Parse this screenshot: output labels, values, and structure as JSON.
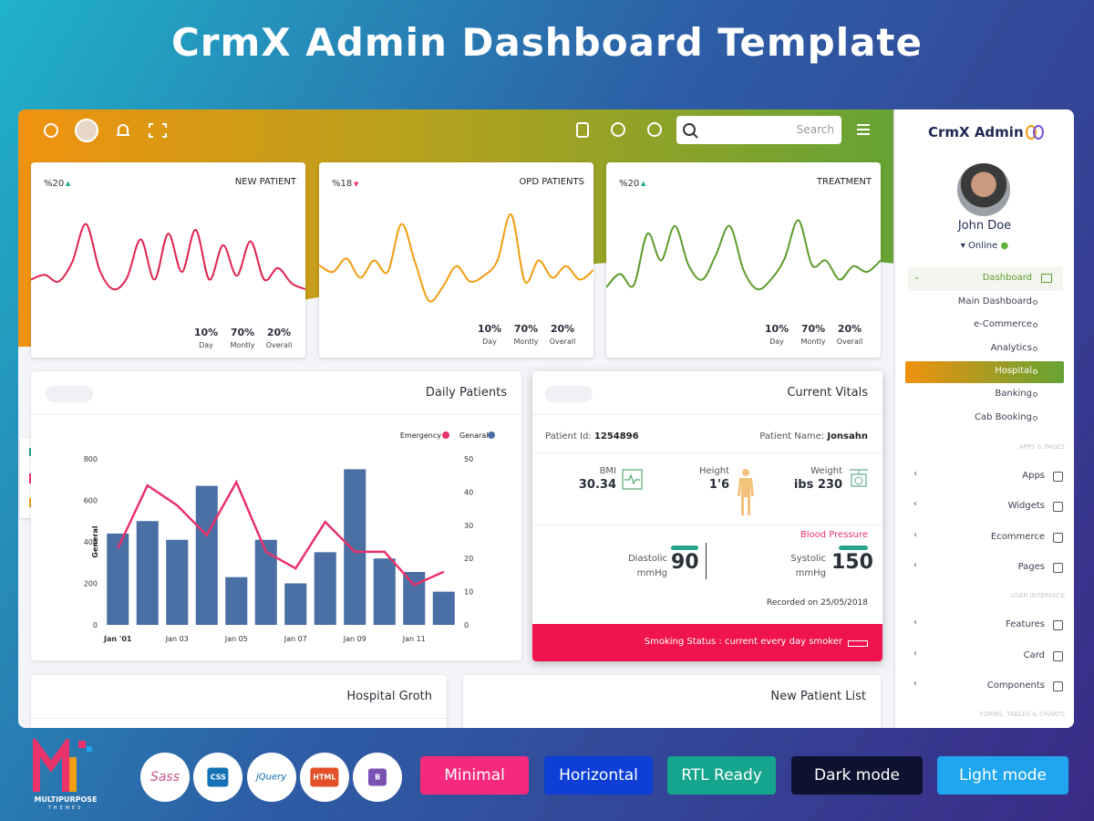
{
  "title": "CrmX Admin Dashboard Template",
  "header": {
    "search_placeholder": "Search"
  },
  "stat_cards": [
    {
      "change": "%20",
      "trend": "up",
      "title": "NEW PATIENT",
      "color": "#e0224e",
      "stats": [
        {
          "value": "10%",
          "label": "Day"
        },
        {
          "value": "70%",
          "label": "Montly"
        },
        {
          "value": "20%",
          "label": "Overall"
        }
      ],
      "values": [
        30,
        35,
        28,
        48,
        88,
        40,
        20,
        32,
        72,
        30,
        78,
        38,
        82,
        30,
        66,
        34,
        70,
        30,
        42,
        26,
        20
      ]
    },
    {
      "change": "%18",
      "trend": "down",
      "title": "OPD PATIENTS",
      "color": "#f29d13",
      "stats": [
        {
          "value": "10%",
          "label": "Day"
        },
        {
          "value": "70%",
          "label": "Montly"
        },
        {
          "value": "20%",
          "label": "Overall"
        }
      ],
      "values": [
        45,
        38,
        52,
        32,
        50,
        38,
        88,
        48,
        8,
        22,
        44,
        28,
        34,
        50,
        98,
        28,
        50,
        32,
        44,
        30,
        40
      ]
    },
    {
      "change": "%20",
      "trend": "up",
      "title": "TREATMENT",
      "color": "#5e9c2e",
      "stats": [
        {
          "value": "10%",
          "label": "Day"
        },
        {
          "value": "70%",
          "label": "Montly"
        },
        {
          "value": "20%",
          "label": "Overall"
        }
      ],
      "values": [
        22,
        36,
        24,
        78,
        50,
        86,
        45,
        30,
        56,
        86,
        40,
        20,
        30,
        52,
        92,
        45,
        50,
        30,
        44,
        38,
        50
      ]
    }
  ],
  "daily_patients": {
    "type": "bar",
    "title": "Daily Patients",
    "ylabel": "General",
    "categories": [
      "Jan '01",
      null,
      "Jan 03",
      null,
      "Jan 05",
      null,
      "Jan 07",
      null,
      "Jan 09",
      null,
      "Jan 11",
      null
    ],
    "series": [
      {
        "name": "Genaral",
        "color": "#4a6fa5",
        "values": [
          440,
          500,
          410,
          670,
          230,
          410,
          200,
          350,
          750,
          320,
          255,
          160
        ]
      },
      {
        "name": "Emergency",
        "color": "#e8336b",
        "type": "line",
        "axis": "y2",
        "values": [
          23,
          42,
          36,
          27,
          43,
          22,
          17,
          31,
          22,
          22,
          12,
          16
        ]
      }
    ],
    "ylim": [
      0,
      800
    ],
    "yticks": [
      0,
      200,
      400,
      600,
      800
    ],
    "y2lim": [
      0,
      50
    ],
    "y2ticks": [
      0,
      10,
      20,
      30,
      40,
      50
    ],
    "grid": false
  },
  "vitals": {
    "title": "Current Vitals",
    "patient_id_label": "Patient Id:",
    "patient_id": "1254896",
    "patient_name_label": "Patient Name:",
    "patient_name": "Jonsahn",
    "bmi_label": "BMI",
    "bmi": "30.34",
    "height_label": "Height",
    "height": "1'6",
    "weight_label": "Weight",
    "weight": "ibs 230",
    "bp_title": "Blood Pressure",
    "diastolic_label": "Diastolic",
    "diastolic_unit": "mmHg",
    "diastolic": "90",
    "systolic_label": "Systolic",
    "systolic_unit": "mmHg",
    "systolic": "150",
    "recorded": "Recorded on 25/05/2018",
    "smoking": "Smoking Status : current every day smoker"
  },
  "bottom_panels": [
    "Hospital Groth",
    "New Patient List"
  ],
  "sidebar": {
    "brand": "CrmX Admin",
    "user": "John Doe",
    "status": "Online",
    "menu": "Dashboard",
    "submenu": [
      "Main Dashboard",
      "e-Commerce",
      "Analytics",
      "Hospital",
      "Banking",
      "Cab Booking"
    ],
    "active": "Hospital",
    "sections": [
      {
        "label": "APPS & PAGES",
        "items": [
          "Apps",
          "Widgets",
          "Ecommerce",
          "Pages"
        ]
      },
      {
        "label": "USER INTERFACE",
        "items": [
          "Features",
          "Card",
          "Components"
        ]
      },
      {
        "label": "FORMS, TABLES & CHARTS",
        "items": []
      }
    ]
  },
  "footer": {
    "brand": "MULTIPURPOSE",
    "brand_sub": "THEMES",
    "techs": [
      "Sass",
      "CSS",
      "jQuery",
      "HTML",
      "B"
    ],
    "buttons": [
      {
        "label": "Minimal",
        "color": "#f52a7e"
      },
      {
        "label": "Horizontal",
        "color": "#0d3fd6"
      },
      {
        "label": "RTL Ready",
        "color": "#14a58c"
      },
      {
        "label": "Dark mode",
        "color": "#0d1230"
      },
      {
        "label": "Light mode",
        "color": "#1fa6ee"
      }
    ]
  }
}
